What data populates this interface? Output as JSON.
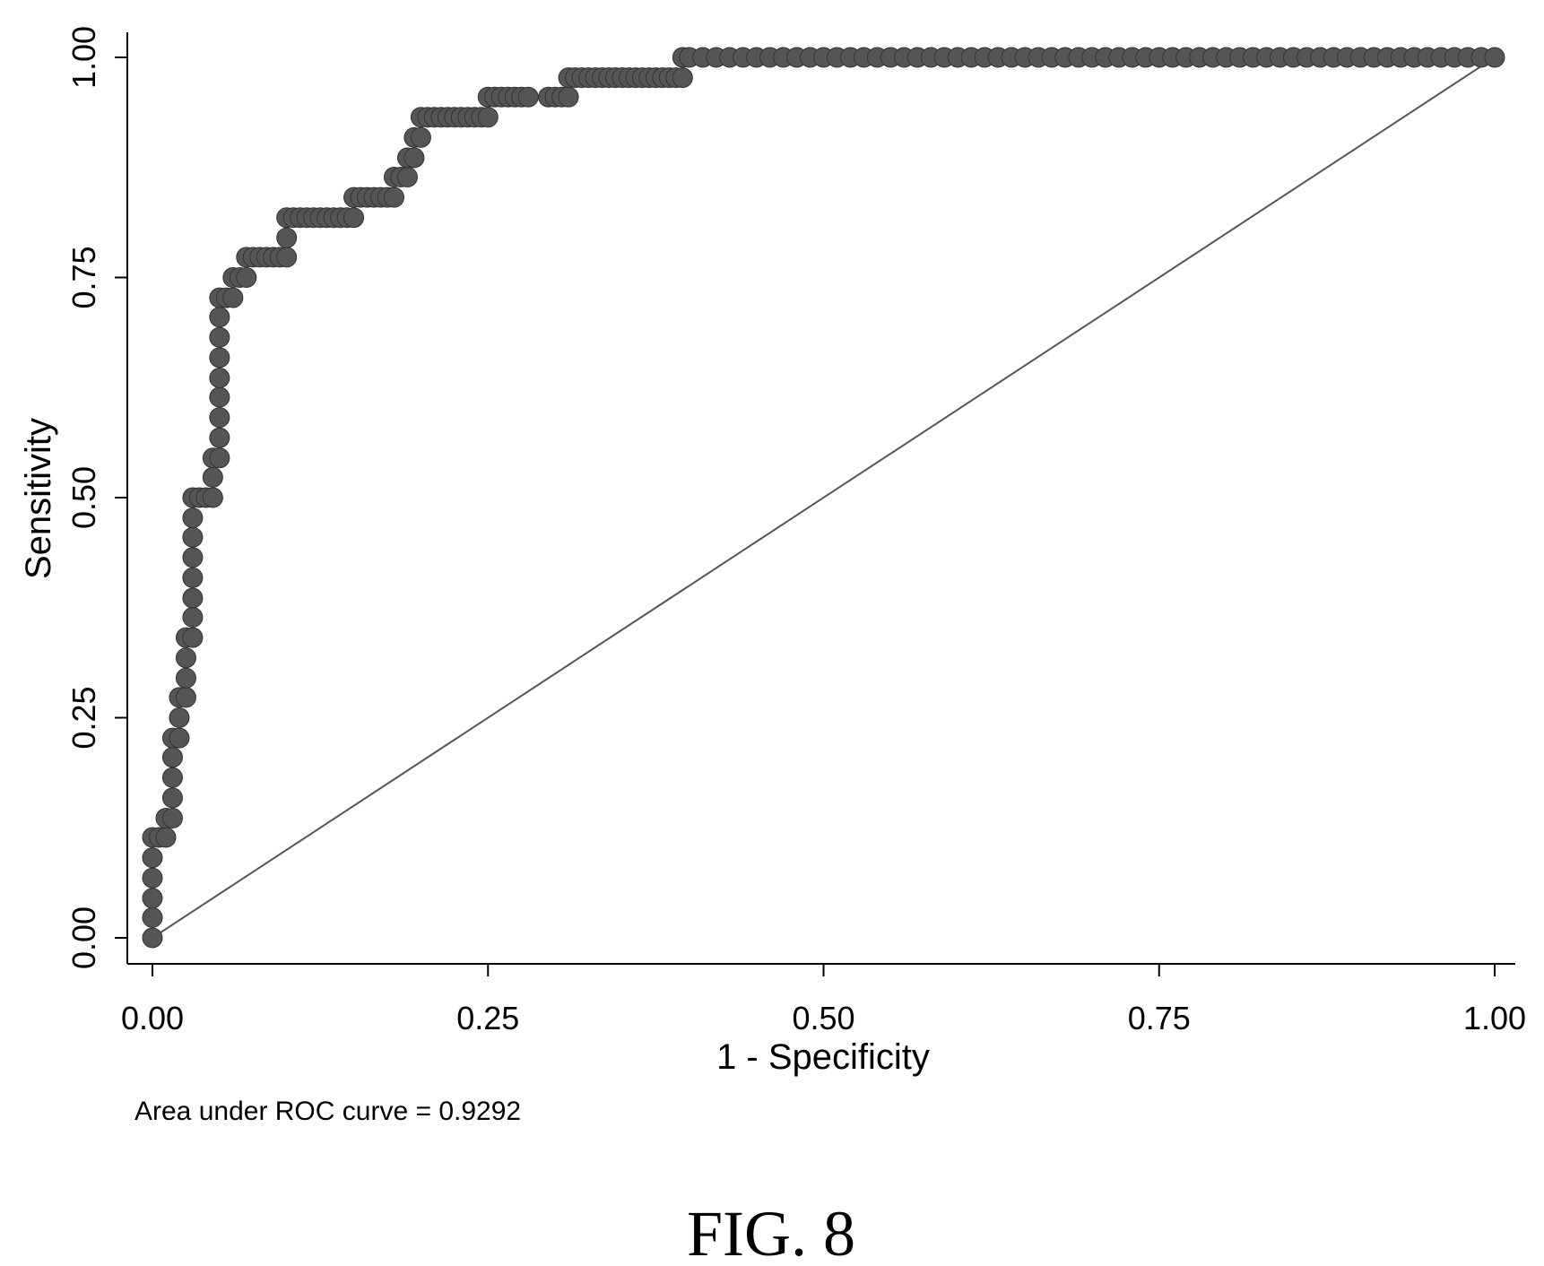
{
  "chart_data": {
    "type": "scatter",
    "xlabel": "1 - Specificity",
    "ylabel": "Sensitivity",
    "xlim": [
      0,
      1
    ],
    "ylim": [
      0,
      1
    ],
    "xticks": [
      "0.00",
      "0.25",
      "0.50",
      "0.75",
      "1.00"
    ],
    "yticks": [
      "0.00",
      "0.25",
      "0.50",
      "0.75",
      "1.00"
    ],
    "grid": false,
    "colors": {
      "points": "#555555",
      "reference": "#555555",
      "axis": "#000000"
    },
    "series": [
      {
        "points": [
          [
            0.0,
            0.0
          ],
          [
            0.0,
            0.023
          ],
          [
            0.0,
            0.045
          ],
          [
            0.0,
            0.068
          ],
          [
            0.0,
            0.091
          ],
          [
            0.0,
            0.114
          ],
          [
            0.005,
            0.114
          ],
          [
            0.01,
            0.114
          ],
          [
            0.01,
            0.136
          ],
          [
            0.015,
            0.136
          ],
          [
            0.015,
            0.159
          ],
          [
            0.015,
            0.182
          ],
          [
            0.015,
            0.205
          ],
          [
            0.015,
            0.227
          ],
          [
            0.02,
            0.227
          ],
          [
            0.02,
            0.25
          ],
          [
            0.02,
            0.273
          ],
          [
            0.025,
            0.273
          ],
          [
            0.025,
            0.295
          ],
          [
            0.025,
            0.318
          ],
          [
            0.025,
            0.341
          ],
          [
            0.03,
            0.341
          ],
          [
            0.03,
            0.364
          ],
          [
            0.03,
            0.386
          ],
          [
            0.03,
            0.409
          ],
          [
            0.03,
            0.432
          ],
          [
            0.03,
            0.455
          ],
          [
            0.03,
            0.477
          ],
          [
            0.03,
            0.5
          ],
          [
            0.035,
            0.5
          ],
          [
            0.04,
            0.5
          ],
          [
            0.045,
            0.5
          ],
          [
            0.045,
            0.523
          ],
          [
            0.045,
            0.545
          ],
          [
            0.05,
            0.545
          ],
          [
            0.05,
            0.568
          ],
          [
            0.05,
            0.591
          ],
          [
            0.05,
            0.614
          ],
          [
            0.05,
            0.636
          ],
          [
            0.05,
            0.659
          ],
          [
            0.05,
            0.682
          ],
          [
            0.05,
            0.705
          ],
          [
            0.05,
            0.727
          ],
          [
            0.055,
            0.727
          ],
          [
            0.06,
            0.727
          ],
          [
            0.06,
            0.75
          ],
          [
            0.065,
            0.75
          ],
          [
            0.07,
            0.75
          ],
          [
            0.07,
            0.773
          ],
          [
            0.075,
            0.773
          ],
          [
            0.08,
            0.773
          ],
          [
            0.085,
            0.773
          ],
          [
            0.09,
            0.773
          ],
          [
            0.095,
            0.773
          ],
          [
            0.1,
            0.773
          ],
          [
            0.1,
            0.795
          ],
          [
            0.1,
            0.818
          ],
          [
            0.105,
            0.818
          ],
          [
            0.11,
            0.818
          ],
          [
            0.115,
            0.818
          ],
          [
            0.12,
            0.818
          ],
          [
            0.125,
            0.818
          ],
          [
            0.13,
            0.818
          ],
          [
            0.135,
            0.818
          ],
          [
            0.14,
            0.818
          ],
          [
            0.145,
            0.818
          ],
          [
            0.15,
            0.818
          ],
          [
            0.15,
            0.841
          ],
          [
            0.155,
            0.841
          ],
          [
            0.16,
            0.841
          ],
          [
            0.165,
            0.841
          ],
          [
            0.17,
            0.841
          ],
          [
            0.175,
            0.841
          ],
          [
            0.18,
            0.841
          ],
          [
            0.18,
            0.864
          ],
          [
            0.185,
            0.864
          ],
          [
            0.19,
            0.864
          ],
          [
            0.19,
            0.886
          ],
          [
            0.195,
            0.886
          ],
          [
            0.195,
            0.909
          ],
          [
            0.2,
            0.909
          ],
          [
            0.2,
            0.932
          ],
          [
            0.205,
            0.932
          ],
          [
            0.21,
            0.932
          ],
          [
            0.215,
            0.932
          ],
          [
            0.22,
            0.932
          ],
          [
            0.225,
            0.932
          ],
          [
            0.23,
            0.932
          ],
          [
            0.235,
            0.932
          ],
          [
            0.24,
            0.932
          ],
          [
            0.245,
            0.932
          ],
          [
            0.25,
            0.932
          ],
          [
            0.25,
            0.955
          ],
          [
            0.255,
            0.955
          ],
          [
            0.26,
            0.955
          ],
          [
            0.265,
            0.955
          ],
          [
            0.27,
            0.955
          ],
          [
            0.275,
            0.955
          ],
          [
            0.28,
            0.955
          ],
          [
            0.295,
            0.955
          ],
          [
            0.3,
            0.955
          ],
          [
            0.305,
            0.955
          ],
          [
            0.31,
            0.955
          ],
          [
            0.31,
            0.977
          ],
          [
            0.315,
            0.977
          ],
          [
            0.32,
            0.977
          ],
          [
            0.325,
            0.977
          ],
          [
            0.33,
            0.977
          ],
          [
            0.335,
            0.977
          ],
          [
            0.34,
            0.977
          ],
          [
            0.345,
            0.977
          ],
          [
            0.35,
            0.977
          ],
          [
            0.355,
            0.977
          ],
          [
            0.36,
            0.977
          ],
          [
            0.365,
            0.977
          ],
          [
            0.37,
            0.977
          ],
          [
            0.375,
            0.977
          ],
          [
            0.38,
            0.977
          ],
          [
            0.385,
            0.977
          ],
          [
            0.39,
            0.977
          ],
          [
            0.395,
            0.977
          ],
          [
            0.395,
            1.0
          ],
          [
            0.4,
            1.0
          ],
          [
            0.41,
            1.0
          ],
          [
            0.42,
            1.0
          ],
          [
            0.43,
            1.0
          ],
          [
            0.44,
            1.0
          ],
          [
            0.45,
            1.0
          ],
          [
            0.46,
            1.0
          ],
          [
            0.47,
            1.0
          ],
          [
            0.48,
            1.0
          ],
          [
            0.49,
            1.0
          ],
          [
            0.5,
            1.0
          ],
          [
            0.51,
            1.0
          ],
          [
            0.52,
            1.0
          ],
          [
            0.53,
            1.0
          ],
          [
            0.54,
            1.0
          ],
          [
            0.55,
            1.0
          ],
          [
            0.56,
            1.0
          ],
          [
            0.57,
            1.0
          ],
          [
            0.58,
            1.0
          ],
          [
            0.59,
            1.0
          ],
          [
            0.6,
            1.0
          ],
          [
            0.61,
            1.0
          ],
          [
            0.62,
            1.0
          ],
          [
            0.63,
            1.0
          ],
          [
            0.64,
            1.0
          ],
          [
            0.65,
            1.0
          ],
          [
            0.66,
            1.0
          ],
          [
            0.67,
            1.0
          ],
          [
            0.68,
            1.0
          ],
          [
            0.69,
            1.0
          ],
          [
            0.7,
            1.0
          ],
          [
            0.71,
            1.0
          ],
          [
            0.72,
            1.0
          ],
          [
            0.73,
            1.0
          ],
          [
            0.74,
            1.0
          ],
          [
            0.75,
            1.0
          ],
          [
            0.76,
            1.0
          ],
          [
            0.77,
            1.0
          ],
          [
            0.78,
            1.0
          ],
          [
            0.79,
            1.0
          ],
          [
            0.8,
            1.0
          ],
          [
            0.81,
            1.0
          ],
          [
            0.82,
            1.0
          ],
          [
            0.83,
            1.0
          ],
          [
            0.84,
            1.0
          ],
          [
            0.85,
            1.0
          ],
          [
            0.86,
            1.0
          ],
          [
            0.87,
            1.0
          ],
          [
            0.88,
            1.0
          ],
          [
            0.89,
            1.0
          ],
          [
            0.9,
            1.0
          ],
          [
            0.91,
            1.0
          ],
          [
            0.92,
            1.0
          ],
          [
            0.93,
            1.0
          ],
          [
            0.94,
            1.0
          ],
          [
            0.95,
            1.0
          ],
          [
            0.96,
            1.0
          ],
          [
            0.97,
            1.0
          ],
          [
            0.98,
            1.0
          ],
          [
            0.99,
            1.0
          ],
          [
            1.0,
            1.0
          ]
        ]
      }
    ],
    "reference_line": [
      [
        0,
        0
      ],
      [
        1,
        1
      ]
    ],
    "annotation": "Area under ROC curve = 0.9292"
  },
  "figure_label": "FIG. 8"
}
